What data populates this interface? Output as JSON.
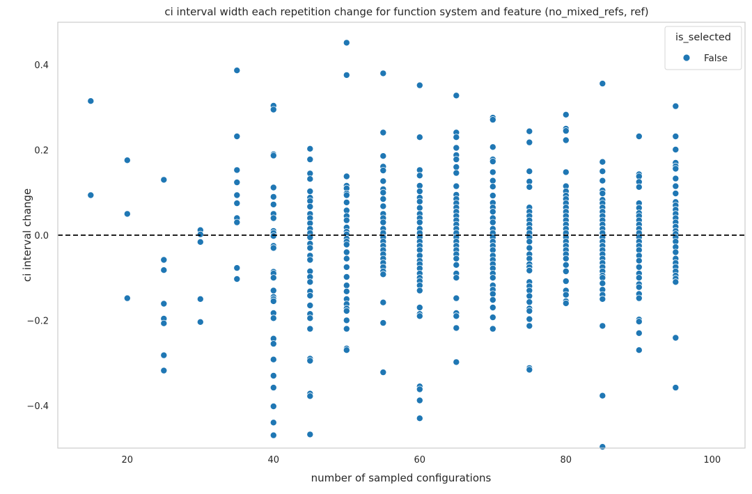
{
  "chart_data": {
    "type": "scatter",
    "title": "ci interval width each repetition change for function system and feature (no_mixed_refs, ref)",
    "xlabel": "number of sampled configurations",
    "ylabel": "ci interval change",
    "xlim": [
      10.5,
      104.5
    ],
    "ylim": [
      -0.5,
      0.5
    ],
    "xticks": [
      20,
      40,
      60,
      80,
      100
    ],
    "yticks": [
      -0.4,
      -0.2,
      0.0,
      0.2,
      0.4
    ],
    "ytick_labels": [
      "−0.4",
      "−0.2",
      "0.0",
      "0.2",
      "0.4"
    ],
    "grid": false,
    "reference_line": {
      "y": 0.0,
      "style": "dashed",
      "color": "#000000"
    },
    "legend": {
      "title": "is_selected",
      "placement": "top-right",
      "entries": [
        "False"
      ]
    },
    "colors": {
      "marker": "#1f77b4",
      "marker_edge": "#ffffff",
      "frame": "#cccccc"
    },
    "series": [
      {
        "name": "False",
        "points": [
          {
            "x": 15,
            "ys": [
              0.315,
              0.094
            ]
          },
          {
            "x": 20,
            "ys": [
              0.176,
              0.05,
              -0.148
            ]
          },
          {
            "x": 25,
            "ys": [
              0.13,
              -0.058,
              -0.082,
              -0.161,
              -0.196,
              -0.207,
              -0.282,
              -0.318
            ]
          },
          {
            "x": 30,
            "ys": [
              0.012,
              0.002,
              -0.016,
              -0.15,
              -0.204
            ]
          },
          {
            "x": 35,
            "ys": [
              0.387,
              0.232,
              0.153,
              0.124,
              0.094,
              0.075,
              0.04,
              0.03,
              -0.077,
              -0.103
            ]
          },
          {
            "x": 40,
            "ys": [
              0.304,
              0.295,
              0.19,
              0.187,
              0.112,
              0.09,
              0.072,
              0.05,
              0.04,
              0.01,
              0.005,
              -0.002,
              -0.025,
              -0.03,
              -0.086,
              -0.09,
              -0.1,
              -0.13,
              -0.145,
              -0.15,
              -0.155,
              -0.183,
              -0.195,
              -0.243,
              -0.255,
              -0.292,
              -0.33,
              -0.358,
              -0.402,
              -0.44,
              -0.47
            ]
          },
          {
            "x": 45,
            "ys": [
              0.203,
              0.178,
              0.145,
              0.132,
              0.103,
              0.088,
              0.08,
              0.067,
              0.05,
              0.04,
              0.028,
              0.015,
              0.005,
              -0.005,
              -0.02,
              -0.03,
              -0.048,
              -0.058,
              -0.085,
              -0.098,
              -0.11,
              -0.132,
              -0.142,
              -0.165,
              -0.185,
              -0.195,
              -0.22,
              -0.29,
              -0.295,
              -0.372,
              -0.378,
              -0.468
            ]
          },
          {
            "x": 50,
            "ys": [
              0.452,
              0.376,
              0.138,
              0.116,
              0.11,
              0.098,
              0.094,
              0.077,
              0.058,
              0.045,
              0.035,
              0.018,
              0.008,
              0.002,
              -0.008,
              -0.015,
              -0.022,
              -0.04,
              -0.055,
              -0.075,
              -0.098,
              -0.118,
              -0.132,
              -0.15,
              -0.162,
              -0.172,
              -0.178,
              -0.2,
              -0.22,
              -0.266,
              -0.27
            ]
          },
          {
            "x": 55,
            "ys": [
              0.38,
              0.241,
              0.186,
              0.161,
              0.152,
              0.127,
              0.108,
              0.1,
              0.085,
              0.068,
              0.05,
              0.04,
              0.03,
              0.015,
              0.005,
              -0.005,
              -0.015,
              -0.025,
              -0.035,
              -0.045,
              -0.055,
              -0.065,
              -0.075,
              -0.085,
              -0.092,
              -0.158,
              -0.206,
              -0.322
            ]
          },
          {
            "x": 60,
            "ys": [
              0.352,
              0.23,
              0.153,
              0.14,
              0.116,
              0.103,
              0.088,
              0.079,
              0.064,
              0.05,
              0.04,
              0.03,
              0.015,
              0.005,
              -0.005,
              -0.015,
              -0.025,
              -0.035,
              -0.048,
              -0.06,
              -0.068,
              -0.078,
              -0.09,
              -0.1,
              -0.108,
              -0.118,
              -0.13,
              -0.17,
              -0.185,
              -0.19,
              -0.355,
              -0.362,
              -0.388,
              -0.43
            ]
          },
          {
            "x": 65,
            "ys": [
              0.328,
              0.241,
              0.23,
              0.205,
              0.188,
              0.178,
              0.16,
              0.146,
              0.115,
              0.095,
              0.085,
              0.075,
              0.065,
              0.055,
              0.045,
              0.035,
              0.025,
              0.015,
              0.005,
              -0.005,
              -0.015,
              -0.025,
              -0.035,
              -0.045,
              -0.055,
              -0.07,
              -0.09,
              -0.1,
              -0.148,
              -0.183,
              -0.19,
              -0.218,
              -0.298
            ]
          },
          {
            "x": 70,
            "ys": [
              0.276,
              0.271,
              0.207,
              0.178,
              0.173,
              0.148,
              0.128,
              0.114,
              0.093,
              0.076,
              0.065,
              0.055,
              0.04,
              0.03,
              0.015,
              0.005,
              -0.005,
              -0.015,
              -0.025,
              -0.035,
              -0.048,
              -0.058,
              -0.068,
              -0.078,
              -0.09,
              -0.1,
              -0.118,
              -0.128,
              -0.138,
              -0.152,
              -0.17,
              -0.193,
              -0.22
            ]
          },
          {
            "x": 75,
            "ys": [
              0.244,
              0.218,
              0.15,
              0.126,
              0.113,
              0.065,
              0.055,
              0.045,
              0.035,
              0.025,
              0.015,
              0.005,
              -0.005,
              -0.015,
              -0.03,
              -0.045,
              -0.055,
              -0.068,
              -0.075,
              -0.083,
              -0.11,
              -0.12,
              -0.13,
              -0.143,
              -0.157,
              -0.172,
              -0.178,
              -0.197,
              -0.213,
              -0.312,
              -0.316
            ]
          },
          {
            "x": 80,
            "ys": [
              0.283,
              0.25,
              0.245,
              0.223,
              0.148,
              0.115,
              0.103,
              0.093,
              0.085,
              0.075,
              0.065,
              0.055,
              0.045,
              0.035,
              0.025,
              0.015,
              0.005,
              -0.005,
              -0.015,
              -0.025,
              -0.035,
              -0.045,
              -0.055,
              -0.07,
              -0.085,
              -0.108,
              -0.13,
              -0.14,
              -0.155,
              -0.16
            ]
          },
          {
            "x": 85,
            "ys": [
              0.356,
              0.172,
              0.15,
              0.128,
              0.105,
              0.098,
              0.083,
              0.075,
              0.065,
              0.055,
              0.045,
              0.035,
              0.025,
              0.015,
              0.005,
              -0.005,
              -0.015,
              -0.025,
              -0.035,
              -0.045,
              -0.055,
              -0.065,
              -0.075,
              -0.085,
              -0.095,
              -0.1,
              -0.113,
              -0.128,
              -0.14,
              -0.15,
              -0.213,
              -0.377,
              -0.497
            ]
          },
          {
            "x": 90,
            "ys": [
              0.232,
              0.143,
              0.138,
              0.125,
              0.113,
              0.075,
              0.064,
              0.052,
              0.045,
              0.035,
              0.025,
              0.015,
              0.005,
              -0.005,
              -0.015,
              -0.025,
              -0.035,
              -0.048,
              -0.06,
              -0.075,
              -0.09,
              -0.1,
              -0.115,
              -0.122,
              -0.138,
              -0.148,
              -0.198,
              -0.203,
              -0.23,
              -0.27
            ]
          },
          {
            "x": 95,
            "ys": [
              0.303,
              0.232,
              0.201,
              0.17,
              0.162,
              0.156,
              0.133,
              0.115,
              0.098,
              0.078,
              0.07,
              0.06,
              0.05,
              0.04,
              0.03,
              0.02,
              0.01,
              0.003,
              -0.005,
              -0.015,
              -0.028,
              -0.04,
              -0.055,
              -0.065,
              -0.075,
              -0.085,
              -0.095,
              -0.102,
              -0.11,
              -0.241,
              -0.358
            ]
          }
        ]
      }
    ]
  }
}
